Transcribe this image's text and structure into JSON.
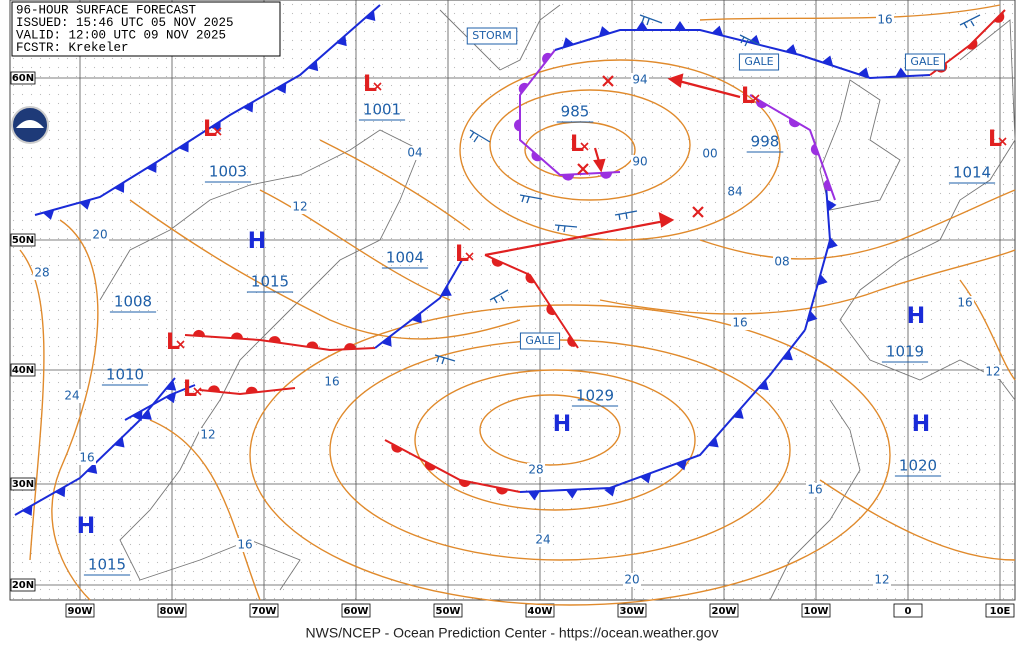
{
  "header": {
    "lines": [
      "96-HOUR SURFACE FORECAST",
      "ISSUED: 15:46 UTC 05 NOV 2025",
      "VALID:  12:00 UTC 09 NOV 2025",
      "FCSTR:  Krekeler"
    ]
  },
  "footer": "NWS/NCEP - Ocean Prediction Center - https://ocean.weather.gov",
  "latitude_labels": [
    "60N",
    "50N",
    "40N",
    "30N",
    "20N"
  ],
  "longitude_labels": [
    "90W",
    "80W",
    "70W",
    "60W",
    "50W",
    "40W",
    "30W",
    "20W",
    "10W",
    "0",
    "10E"
  ],
  "centers": [
    {
      "symbol": "L",
      "pressure": "1001"
    },
    {
      "symbol": "L",
      "pressure": "1003"
    },
    {
      "symbol": "L",
      "pressure": "1004"
    },
    {
      "symbol": "L",
      "pressure": "1008"
    },
    {
      "symbol": "L",
      "pressure": "1010"
    },
    {
      "symbol": "L",
      "pressure": "985"
    },
    {
      "symbol": "L",
      "pressure": "998"
    },
    {
      "symbol": "L",
      "pressure": "1014"
    },
    {
      "symbol": "H",
      "pressure": "1015"
    },
    {
      "symbol": "H",
      "pressure": "1029"
    },
    {
      "symbol": "H",
      "pressure": "1019"
    },
    {
      "symbol": "H",
      "pressure": "1020"
    },
    {
      "symbol": "H",
      "pressure": "1015"
    }
  ],
  "isobar_labels": [
    "94",
    "90",
    "84",
    "00",
    "04",
    "08",
    "12",
    "16",
    "20",
    "28",
    "24",
    "16",
    "12",
    "16",
    "28",
    "24",
    "16",
    "20",
    "16",
    "12",
    "16",
    "16",
    "12"
  ],
  "warnings": [
    "STORM",
    "GALE",
    "GALE",
    "GALE"
  ]
}
